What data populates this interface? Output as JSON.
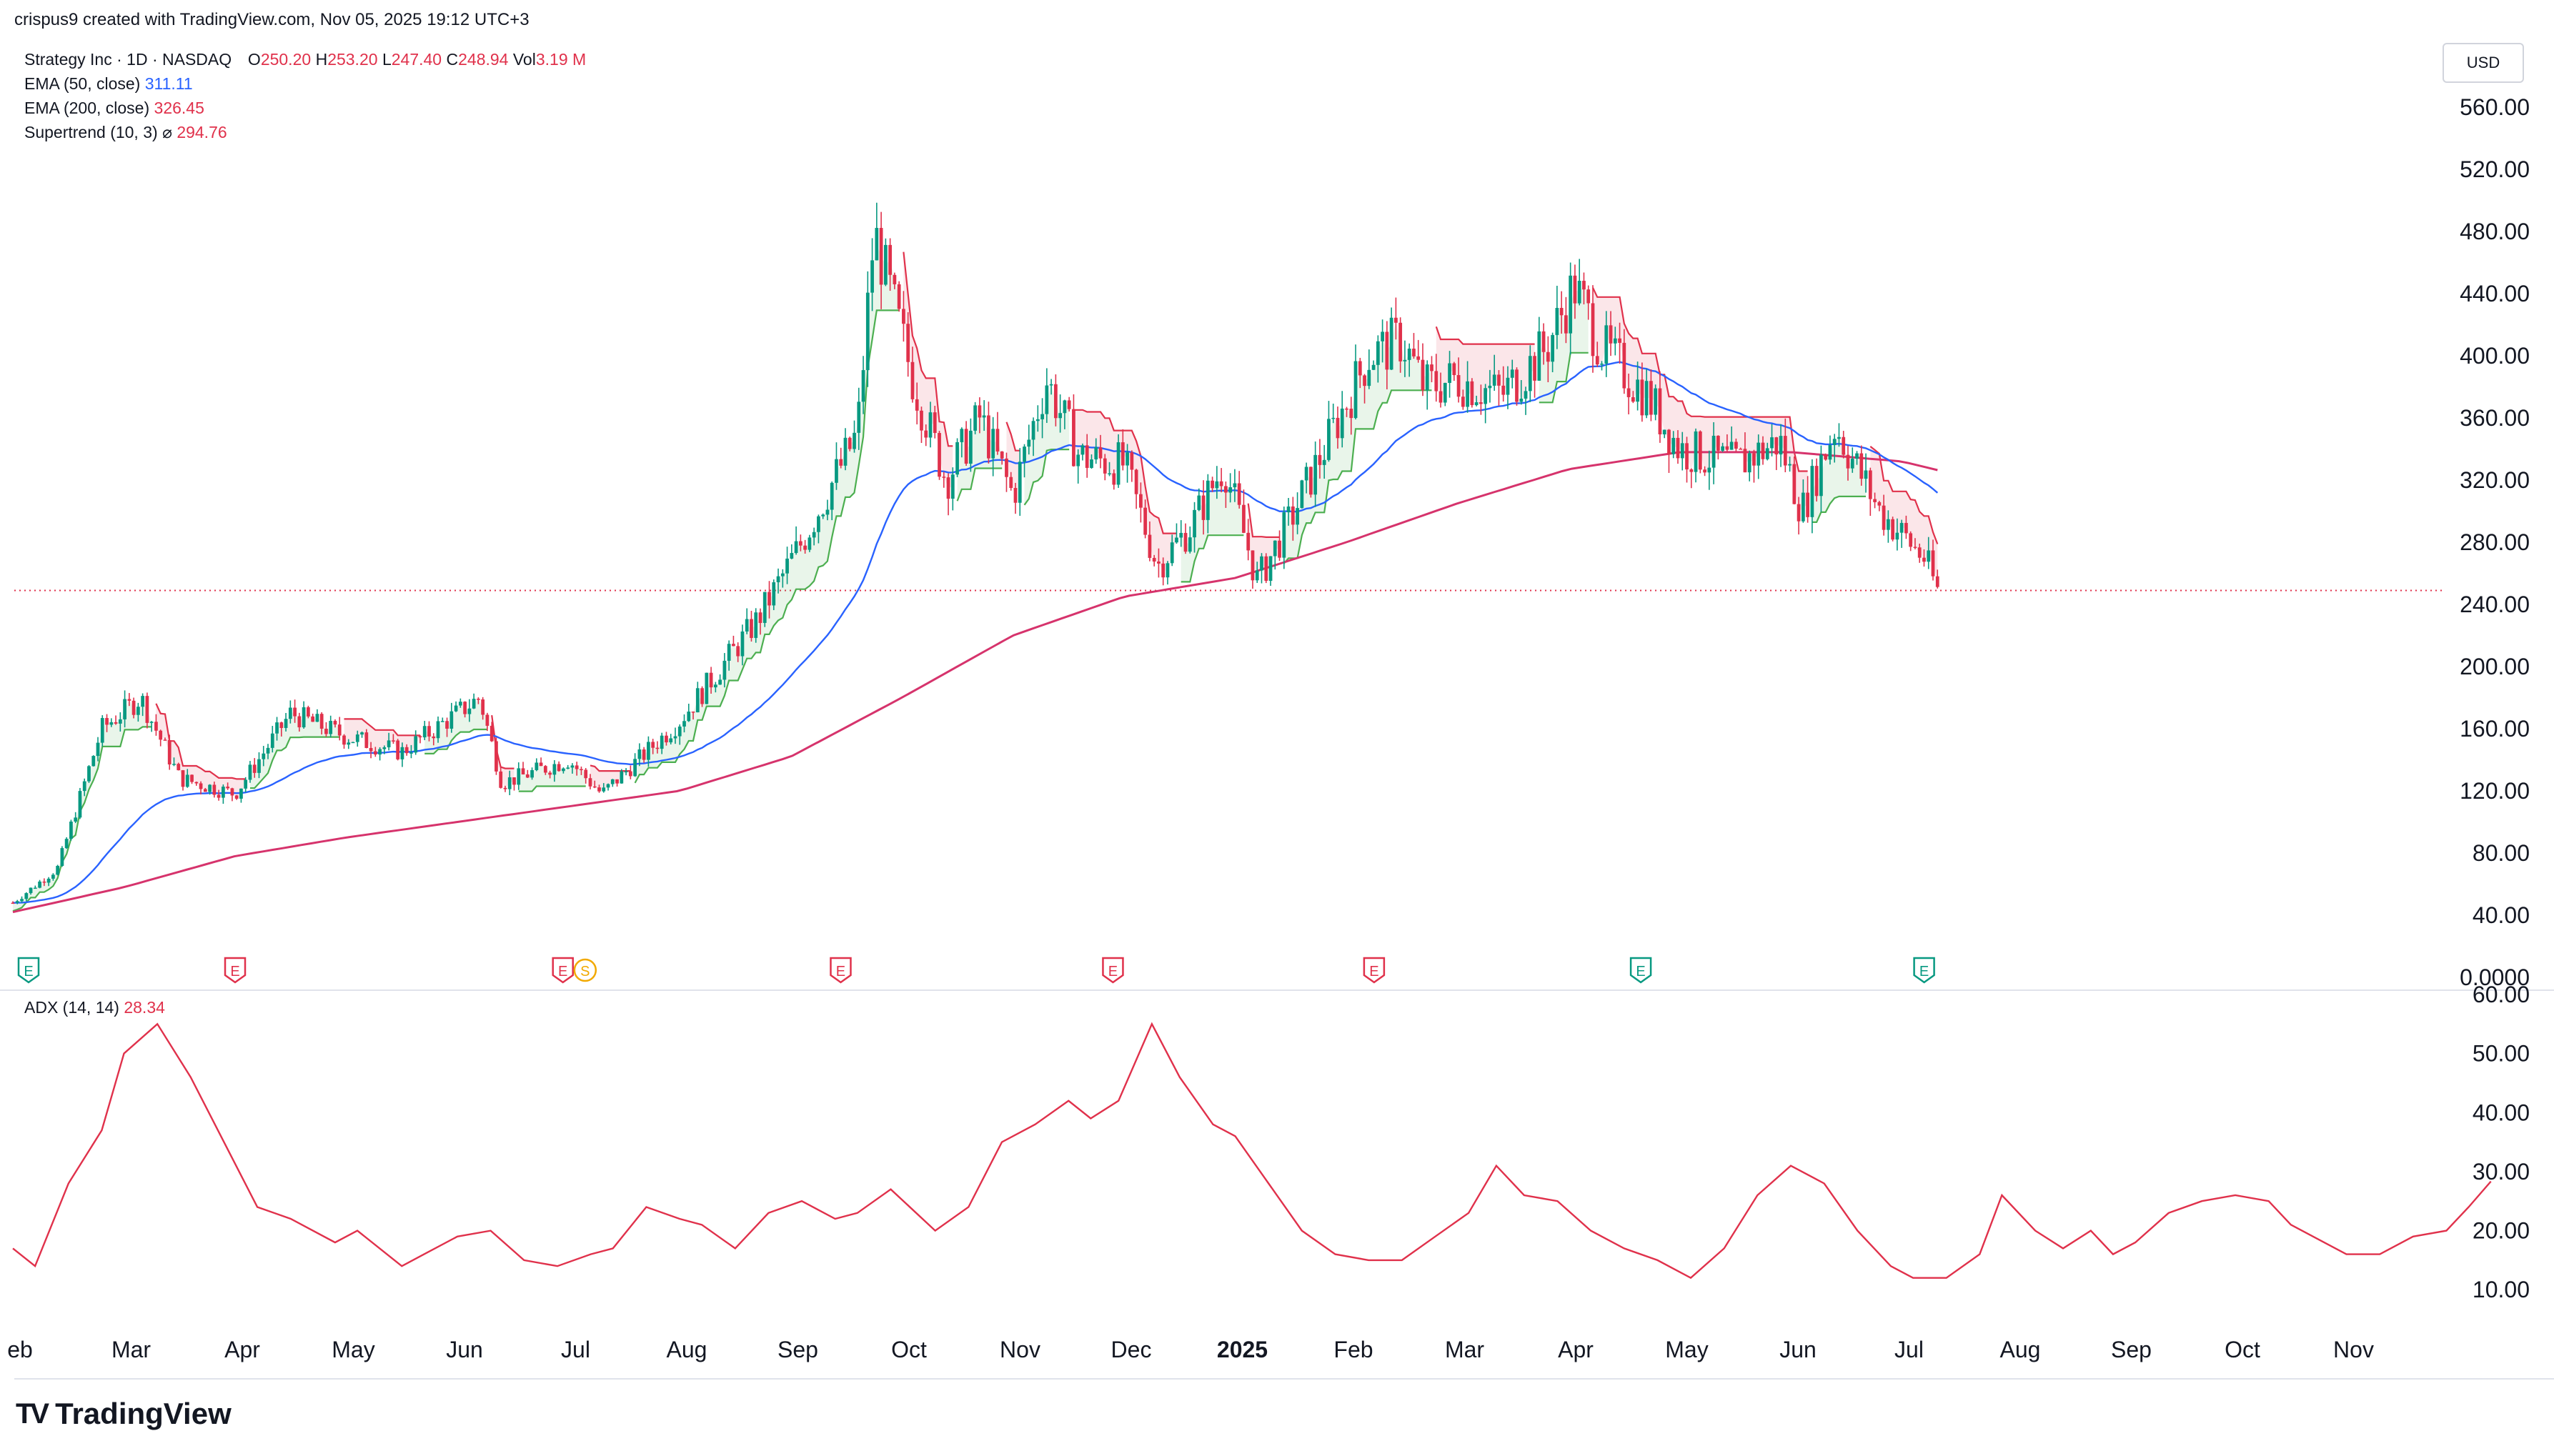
{
  "header": {
    "credit": "crispus9 created with TradingView.com, Nov 05, 2025 19:12 UTC+3"
  },
  "legend": {
    "symbol": "Strategy Inc · 1D · NASDAQ",
    "o_label": "O",
    "o_value": "250.20",
    "h_label": "H",
    "h_value": "253.20",
    "l_label": "L",
    "l_value": "247.40",
    "c_label": "C",
    "c_value": "248.94",
    "vol_label": "Vol",
    "vol_value": "3.19 M",
    "ema50_label": "EMA (50, close)",
    "ema50_value": "311.11",
    "ema200_label": "EMA (200, close)",
    "ema200_value": "326.45",
    "supertrend_label": "Supertrend (10, 3)",
    "supertrend_icon": "⌀",
    "supertrend_value": "294.76",
    "adx_label": "ADX (14, 14)",
    "adx_value": "28.34"
  },
  "currency_button": "USD",
  "logo": {
    "mark": "TV",
    "name": "TradingView"
  },
  "colors": {
    "up": "#089981",
    "down": "#e0314b",
    "ema50": "#2962ff",
    "ema200": "#d6336c",
    "supertrend_up": "#4caf50",
    "supertrend_down": "#e0314b",
    "adx": "#e0314b",
    "earnings": "#e0314b",
    "earnings_positive": "#089981",
    "split": "#f2a900"
  },
  "chart_data": [
    {
      "type": "candlestick",
      "title": "Strategy Inc · 1D · NASDAQ",
      "ylim": [
        0,
        560
      ],
      "yticks": [
        "560.00",
        "520.00",
        "480.00",
        "440.00",
        "400.00",
        "360.00",
        "320.00",
        "280.00",
        "240.00",
        "200.00",
        "160.00",
        "120.00",
        "80.00",
        "40.00",
        "0.0000"
      ],
      "x_labels": [
        "eb",
        "Mar",
        "Apr",
        "May",
        "Jun",
        "Jul",
        "Aug",
        "Sep",
        "Oct",
        "Nov",
        "Dec",
        "2025",
        "Feb",
        "Mar",
        "Apr",
        "May",
        "Jun",
        "Jul",
        "Aug",
        "Sep",
        "Oct",
        "Nov"
      ],
      "x_label_index": [
        0,
        1,
        2,
        3,
        4,
        5,
        6,
        7,
        8,
        9,
        10,
        11,
        12,
        13,
        14,
        15,
        16,
        17,
        18,
        19,
        20,
        21
      ],
      "last_price": 248.94,
      "price_anchors": [
        {
          "m": 0.0,
          "v": 48
        },
        {
          "m": 0.4,
          "v": 70
        },
        {
          "m": 0.8,
          "v": 160
        },
        {
          "m": 1.15,
          "v": 180
        },
        {
          "m": 1.5,
          "v": 128
        },
        {
          "m": 2.0,
          "v": 118
        },
        {
          "m": 2.5,
          "v": 170
        },
        {
          "m": 3.0,
          "v": 155
        },
        {
          "m": 3.5,
          "v": 145
        },
        {
          "m": 4.2,
          "v": 180
        },
        {
          "m": 4.4,
          "v": 125
        },
        {
          "m": 5.0,
          "v": 140
        },
        {
          "m": 5.3,
          "v": 118
        },
        {
          "m": 6.0,
          "v": 165
        },
        {
          "m": 6.7,
          "v": 230
        },
        {
          "m": 7.1,
          "v": 280
        },
        {
          "m": 7.6,
          "v": 350
        },
        {
          "m": 7.75,
          "v": 480
        },
        {
          "m": 8.1,
          "v": 385
        },
        {
          "m": 8.4,
          "v": 320
        },
        {
          "m": 8.7,
          "v": 360
        },
        {
          "m": 9.0,
          "v": 310
        },
        {
          "m": 9.3,
          "v": 385
        },
        {
          "m": 9.6,
          "v": 335
        },
        {
          "m": 10.0,
          "v": 330
        },
        {
          "m": 10.3,
          "v": 265
        },
        {
          "m": 10.6,
          "v": 290
        },
        {
          "m": 10.9,
          "v": 330
        },
        {
          "m": 11.2,
          "v": 255
        },
        {
          "m": 11.5,
          "v": 295
        },
        {
          "m": 11.9,
          "v": 355
        },
        {
          "m": 12.2,
          "v": 400
        },
        {
          "m": 12.5,
          "v": 410
        },
        {
          "m": 12.7,
          "v": 380
        },
        {
          "m": 13.0,
          "v": 385
        },
        {
          "m": 13.4,
          "v": 375
        },
        {
          "m": 13.8,
          "v": 405
        },
        {
          "m": 14.05,
          "v": 445
        },
        {
          "m": 14.3,
          "v": 405
        },
        {
          "m": 14.7,
          "v": 375
        },
        {
          "m": 15.0,
          "v": 340
        },
        {
          "m": 15.5,
          "v": 330
        },
        {
          "m": 15.9,
          "v": 345
        },
        {
          "m": 16.1,
          "v": 300
        },
        {
          "m": 16.4,
          "v": 355
        },
        {
          "m": 16.8,
          "v": 300
        },
        {
          "m": 17.2,
          "v": 270
        },
        {
          "m": 17.32,
          "v": 249
        }
      ],
      "ema200_anchors": [
        {
          "m": 0.0,
          "v": 42
        },
        {
          "m": 1.0,
          "v": 58
        },
        {
          "m": 2.0,
          "v": 78
        },
        {
          "m": 3.0,
          "v": 90
        },
        {
          "m": 4.0,
          "v": 100
        },
        {
          "m": 5.0,
          "v": 110
        },
        {
          "m": 6.0,
          "v": 120
        },
        {
          "m": 7.0,
          "v": 142
        },
        {
          "m": 8.0,
          "v": 180
        },
        {
          "m": 9.0,
          "v": 220
        },
        {
          "m": 10.0,
          "v": 245
        },
        {
          "m": 11.0,
          "v": 257
        },
        {
          "m": 12.0,
          "v": 280
        },
        {
          "m": 13.0,
          "v": 305
        },
        {
          "m": 14.0,
          "v": 327
        },
        {
          "m": 15.0,
          "v": 338
        },
        {
          "m": 16.0,
          "v": 338
        },
        {
          "m": 17.0,
          "v": 332
        },
        {
          "m": 17.32,
          "v": 326.45
        }
      ],
      "ema50_last": 311.11,
      "supertrend_last": 294.76,
      "earnings_markers": [
        {
          "m": 0.0,
          "kind": "E",
          "color": "#089981"
        },
        {
          "m": 2.0,
          "kind": "E",
          "color": "#e0314b"
        },
        {
          "m": 4.95,
          "kind": "E",
          "color": "#e0314b"
        },
        {
          "m": 5.15,
          "kind": "S",
          "color": "#f2a900"
        },
        {
          "m": 7.45,
          "kind": "E",
          "color": "#e0314b"
        },
        {
          "m": 9.9,
          "kind": "E",
          "color": "#e0314b"
        },
        {
          "m": 12.25,
          "kind": "E",
          "color": "#e0314b"
        },
        {
          "m": 14.65,
          "kind": "E",
          "color": "#089981"
        },
        {
          "m": 17.2,
          "kind": "E",
          "color": "#089981"
        }
      ]
    },
    {
      "type": "line",
      "title": "ADX (14, 14)",
      "ylim": [
        7,
        60
      ],
      "yticks": [
        "60.00",
        "50.00",
        "40.00",
        "30.00",
        "20.00",
        "10.00"
      ],
      "series": [
        {
          "values": [
            {
              "m": 0.0,
              "v": 17
            },
            {
              "m": 0.2,
              "v": 14
            },
            {
              "m": 0.5,
              "v": 28
            },
            {
              "m": 0.8,
              "v": 37
            },
            {
              "m": 1.0,
              "v": 50
            },
            {
              "m": 1.3,
              "v": 55
            },
            {
              "m": 1.6,
              "v": 46
            },
            {
              "m": 1.9,
              "v": 35
            },
            {
              "m": 2.2,
              "v": 24
            },
            {
              "m": 2.5,
              "v": 22
            },
            {
              "m": 2.9,
              "v": 18
            },
            {
              "m": 3.1,
              "v": 20
            },
            {
              "m": 3.5,
              "v": 14
            },
            {
              "m": 3.7,
              "v": 16
            },
            {
              "m": 4.0,
              "v": 19
            },
            {
              "m": 4.3,
              "v": 20
            },
            {
              "m": 4.6,
              "v": 15
            },
            {
              "m": 4.9,
              "v": 14
            },
            {
              "m": 5.2,
              "v": 16
            },
            {
              "m": 5.4,
              "v": 17
            },
            {
              "m": 5.7,
              "v": 24
            },
            {
              "m": 6.0,
              "v": 22
            },
            {
              "m": 6.2,
              "v": 21
            },
            {
              "m": 6.5,
              "v": 17
            },
            {
              "m": 6.8,
              "v": 23
            },
            {
              "m": 7.1,
              "v": 25
            },
            {
              "m": 7.4,
              "v": 22
            },
            {
              "m": 7.6,
              "v": 23
            },
            {
              "m": 7.9,
              "v": 27
            },
            {
              "m": 8.3,
              "v": 20
            },
            {
              "m": 8.6,
              "v": 24
            },
            {
              "m": 8.9,
              "v": 35
            },
            {
              "m": 9.2,
              "v": 38
            },
            {
              "m": 9.5,
              "v": 42
            },
            {
              "m": 9.7,
              "v": 39
            },
            {
              "m": 9.95,
              "v": 42
            },
            {
              "m": 10.25,
              "v": 55
            },
            {
              "m": 10.5,
              "v": 46
            },
            {
              "m": 10.8,
              "v": 38
            },
            {
              "m": 11.0,
              "v": 36
            },
            {
              "m": 11.3,
              "v": 28
            },
            {
              "m": 11.6,
              "v": 20
            },
            {
              "m": 11.9,
              "v": 16
            },
            {
              "m": 12.2,
              "v": 15
            },
            {
              "m": 12.5,
              "v": 15
            },
            {
              "m": 12.8,
              "v": 19
            },
            {
              "m": 13.1,
              "v": 23
            },
            {
              "m": 13.35,
              "v": 31
            },
            {
              "m": 13.6,
              "v": 26
            },
            {
              "m": 13.9,
              "v": 25
            },
            {
              "m": 14.2,
              "v": 20
            },
            {
              "m": 14.5,
              "v": 17
            },
            {
              "m": 14.8,
              "v": 15
            },
            {
              "m": 15.1,
              "v": 12
            },
            {
              "m": 15.4,
              "v": 17
            },
            {
              "m": 15.7,
              "v": 26
            },
            {
              "m": 16.0,
              "v": 31
            },
            {
              "m": 16.3,
              "v": 28
            },
            {
              "m": 16.6,
              "v": 20
            },
            {
              "m": 16.9,
              "v": 14
            },
            {
              "m": 17.1,
              "v": 12
            },
            {
              "m": 17.4,
              "v": 12
            },
            {
              "m": 17.7,
              "v": 16
            },
            {
              "m": 17.9,
              "v": 26
            },
            {
              "m": 18.2,
              "v": 20
            },
            {
              "m": 18.45,
              "v": 17
            },
            {
              "m": 18.7,
              "v": 20
            },
            {
              "m": 18.9,
              "v": 16
            },
            {
              "m": 19.1,
              "v": 18
            },
            {
              "m": 19.4,
              "v": 23
            },
            {
              "m": 19.7,
              "v": 25
            },
            {
              "m": 20.0,
              "v": 26
            },
            {
              "m": 20.3,
              "v": 25
            },
            {
              "m": 20.5,
              "v": 21
            },
            {
              "m": 20.8,
              "v": 18
            },
            {
              "m": 21.0,
              "v": 16
            },
            {
              "m": 21.3,
              "v": 16
            },
            {
              "m": 21.6,
              "v": 19
            },
            {
              "m": 21.9,
              "v": 20
            },
            {
              "m": 22.1,
              "v": 24
            },
            {
              "m": 22.3,
              "v": 28.34
            }
          ]
        }
      ]
    }
  ]
}
